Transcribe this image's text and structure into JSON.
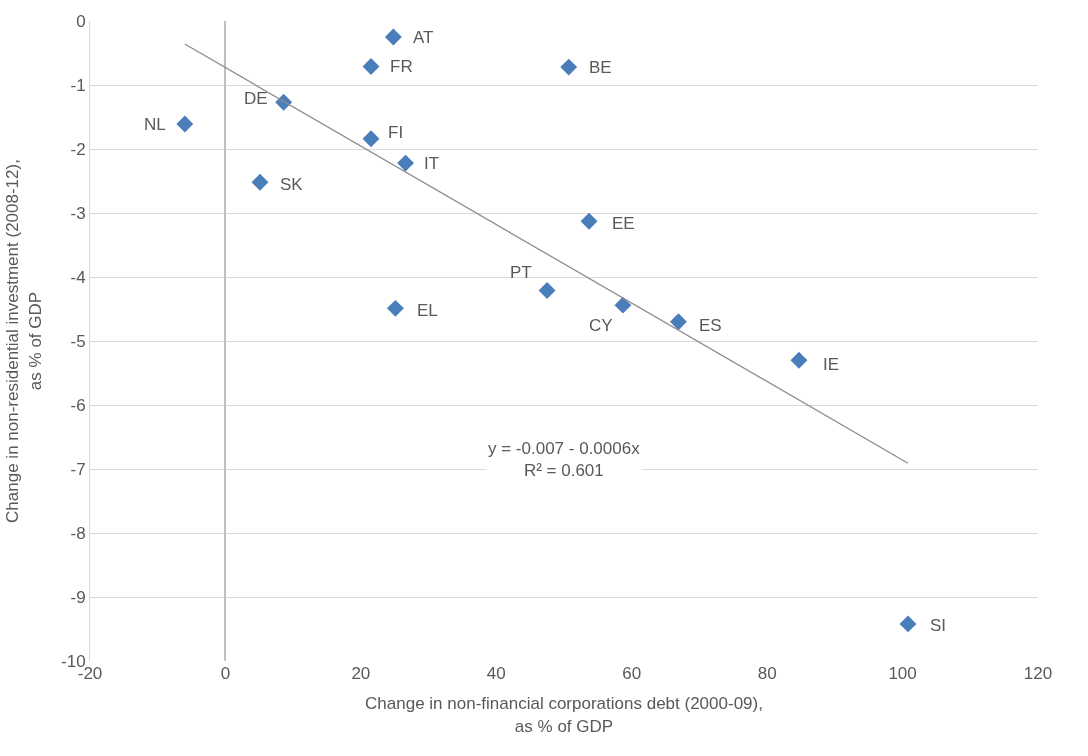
{
  "chart_data": {
    "type": "scatter",
    "xlabel": "Change in non-financial corporations debt (2000-09),\nas % of GDP",
    "ylabel": "Change in non-residential investment (2008-12),\nas % of GDP",
    "series": [
      {
        "color": "#4a7ebb",
        "x": [
          24.8,
          21.5,
          50.7,
          8.6,
          -6.0,
          21.5,
          26.6,
          5.1,
          53.7,
          47.5,
          25.1,
          58.7,
          66.9,
          84.7,
          100.8
        ],
        "values": [
          -0.25,
          -0.71,
          -0.72,
          -1.27,
          -1.61,
          -1.84,
          -2.22,
          -2.52,
          -3.13,
          -4.21,
          -4.49,
          -4.44,
          -4.7,
          -5.3,
          -9.42
        ]
      },
      {
        "type": "line",
        "marker": "none",
        "color": "#8c8c8c",
        "x": [
          -6.0,
          100.8
        ],
        "values": [
          -0.36,
          -6.91
        ]
      }
    ],
    "annotations": [
      {
        "text": "AT",
        "x": 24.8,
        "y": -0.25
      },
      {
        "text": "FR",
        "x": 21.5,
        "y": -0.71
      },
      {
        "text": "BE",
        "x": 50.7,
        "y": -0.72
      },
      {
        "text": "DE",
        "x": 8.6,
        "y": -1.27
      },
      {
        "text": "NL",
        "x": -6.0,
        "y": -1.61
      },
      {
        "text": "FI",
        "x": 21.5,
        "y": -1.84
      },
      {
        "text": "IT",
        "x": 26.6,
        "y": -2.22
      },
      {
        "text": "SK",
        "x": 5.1,
        "y": -2.52
      },
      {
        "text": "EE",
        "x": 53.7,
        "y": -3.13
      },
      {
        "text": "PT",
        "x": 47.5,
        "y": -4.21
      },
      {
        "text": "EL",
        "x": 25.1,
        "y": -4.49
      },
      {
        "text": "CY",
        "x": 58.7,
        "y": -4.44
      },
      {
        "text": "ES",
        "x": 66.9,
        "y": -4.7
      },
      {
        "text": "IE",
        "x": 84.7,
        "y": -5.3
      },
      {
        "text": "SI",
        "x": 100.8,
        "y": -9.42
      },
      "y = -0.007 - 0.0006x\nR² = 0.601"
    ],
    "xlim": [
      -20,
      120
    ],
    "xticks": [
      -20,
      0,
      20,
      40,
      60,
      80,
      100,
      120
    ],
    "ylim": [
      -10,
      0
    ],
    "yticks": [
      0,
      -1,
      -2,
      -3,
      -4,
      -5,
      -6,
      -7,
      -8,
      -9,
      -10
    ],
    "grid": "y",
    "marker": "diamond"
  }
}
